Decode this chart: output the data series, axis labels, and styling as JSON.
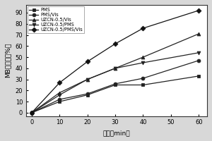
{
  "x": [
    0,
    10,
    20,
    30,
    40,
    60
  ],
  "series": [
    {
      "label": "PMS",
      "marker": "s",
      "values": [
        0,
        10,
        16,
        25,
        25,
        33
      ],
      "color": "#222222",
      "linestyle": "-",
      "mfc": "#222222"
    },
    {
      "label": "PMS/Vis",
      "marker": "o",
      "values": [
        0,
        12,
        17,
        26,
        31,
        47
      ],
      "color": "#222222",
      "linestyle": "-",
      "mfc": "#222222"
    },
    {
      "label": "UZCN-0.5/Vis",
      "marker": "^",
      "values": [
        0,
        18,
        30,
        40,
        50,
        71
      ],
      "color": "#222222",
      "linestyle": "-",
      "mfc": "#222222"
    },
    {
      "label": "UZCN-0.5/PMS",
      "marker": "v",
      "values": [
        0,
        16,
        30,
        40,
        45,
        54
      ],
      "color": "#222222",
      "linestyle": "-",
      "mfc": "#222222"
    },
    {
      "label": "UZCN-0.5/PMS/Vis",
      "marker": "D",
      "values": [
        0,
        27,
        46,
        62,
        76,
        92
      ],
      "color": "#111111",
      "linestyle": "-",
      "mfc": "#111111"
    }
  ],
  "xlabel": "时间（min）",
  "ylabel": "MB去除率（%）",
  "xlim": [
    -2,
    63
  ],
  "ylim": [
    -3,
    97
  ],
  "xticks": [
    0,
    10,
    20,
    30,
    40,
    50,
    60
  ],
  "yticks": [
    0,
    10,
    20,
    30,
    40,
    50,
    60,
    70,
    80,
    90
  ],
  "legend_loc": "upper left",
  "fig_facecolor": "#d8d8d8",
  "ax_facecolor": "#ffffff"
}
